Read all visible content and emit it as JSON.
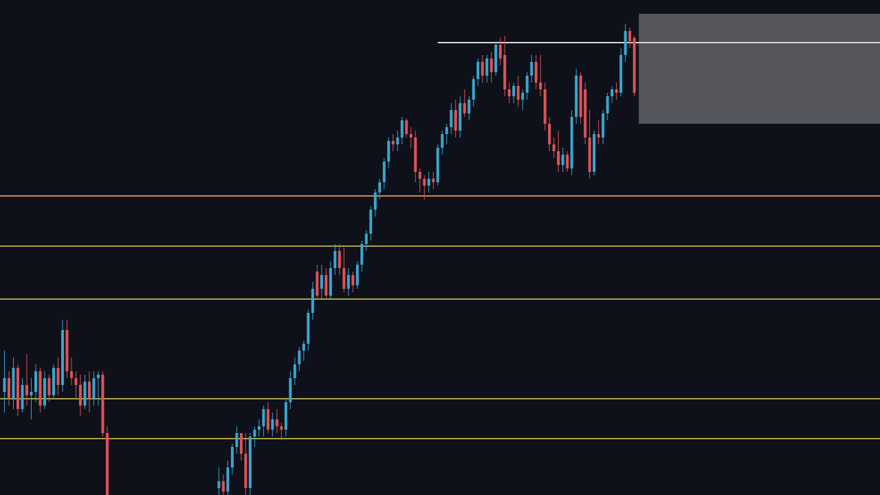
{
  "chart_data": {
    "type": "candlestick",
    "xlim": [
      -1,
      196
    ],
    "ylim": [
      0,
      720
    ],
    "up_color": "#3aa6cf",
    "down_color": "#e0525a",
    "x": [
      0,
      1,
      2,
      3,
      4,
      5,
      6,
      7,
      8,
      9,
      10,
      11,
      12,
      13,
      14,
      15,
      16,
      17,
      18,
      19,
      20,
      21,
      22,
      23,
      48,
      49,
      50,
      51,
      52,
      53,
      54,
      55,
      56,
      57,
      58,
      59,
      60,
      61,
      62,
      63,
      64,
      65,
      66,
      67,
      68,
      69,
      70,
      71,
      72,
      73,
      74,
      75,
      76,
      77,
      78,
      79,
      80,
      81,
      82,
      83,
      84,
      85,
      86,
      87,
      88,
      89,
      90,
      91,
      92,
      93,
      94,
      95,
      96,
      97,
      98,
      99,
      100,
      101,
      102,
      103,
      104,
      105,
      106,
      107,
      108,
      109,
      110,
      111,
      112,
      113,
      114,
      115,
      116,
      117,
      118,
      119,
      120,
      121,
      122,
      123,
      124,
      125,
      126,
      127,
      128,
      129,
      130,
      131,
      132,
      133,
      134,
      135,
      136,
      137,
      138,
      139,
      140,
      141
    ],
    "open": [
      150,
      170,
      140,
      185,
      125,
      160,
      145,
      150,
      180,
      130,
      170,
      145,
      185,
      160,
      240,
      180,
      170,
      160,
      130,
      165,
      140,
      170,
      175,
      90,
      10,
      20,
      5,
      40,
      70,
      90,
      60,
      10,
      85,
      95,
      100,
      125,
      95,
      110,
      100,
      95,
      135,
      170,
      190,
      210,
      220,
      265,
      325,
      300,
      320,
      290,
      330,
      355,
      330,
      300,
      320,
      305,
      335,
      365,
      380,
      415,
      440,
      455,
      485,
      515,
      510,
      520,
      545,
      525,
      520,
      470,
      460,
      450,
      460,
      455,
      505,
      525,
      535,
      560,
      530,
      570,
      555,
      575,
      605,
      630,
      610,
      635,
      615,
      655,
      640,
      590,
      580,
      595,
      575,
      585,
      610,
      630,
      600,
      590,
      540,
      510,
      500,
      480,
      495,
      475,
      550,
      610,
      590,
      520,
      470,
      525,
      520,
      555,
      580,
      590,
      585,
      640,
      675,
      665
    ],
    "high": [
      210,
      180,
      200,
      190,
      170,
      205,
      170,
      190,
      185,
      180,
      175,
      190,
      200,
      255,
      255,
      200,
      180,
      175,
      175,
      180,
      180,
      180,
      180,
      100,
      40,
      30,
      50,
      75,
      100,
      90,
      90,
      90,
      100,
      110,
      130,
      135,
      120,
      125,
      105,
      140,
      180,
      200,
      215,
      225,
      270,
      310,
      335,
      335,
      330,
      340,
      365,
      365,
      360,
      330,
      325,
      340,
      370,
      385,
      420,
      445,
      460,
      490,
      520,
      525,
      530,
      550,
      548,
      535,
      530,
      475,
      465,
      470,
      470,
      510,
      530,
      540,
      570,
      575,
      580,
      590,
      580,
      610,
      635,
      640,
      640,
      645,
      660,
      665,
      668,
      600,
      600,
      610,
      590,
      615,
      640,
      640,
      640,
      600,
      550,
      520,
      530,
      505,
      500,
      560,
      620,
      615,
      600,
      560,
      530,
      545,
      560,
      585,
      595,
      600,
      650,
      685,
      680,
      668
    ],
    "low": [
      120,
      130,
      125,
      115,
      120,
      130,
      110,
      135,
      120,
      125,
      135,
      140,
      145,
      150,
      170,
      160,
      140,
      115,
      125,
      120,
      130,
      130,
      85,
      -20,
      -20,
      0,
      -10,
      30,
      60,
      50,
      -10,
      0,
      70,
      85,
      85,
      90,
      85,
      90,
      80,
      85,
      125,
      160,
      180,
      195,
      210,
      255,
      285,
      285,
      285,
      285,
      320,
      320,
      295,
      290,
      295,
      300,
      325,
      355,
      370,
      405,
      430,
      445,
      475,
      500,
      500,
      510,
      520,
      505,
      455,
      440,
      430,
      440,
      445,
      450,
      495,
      510,
      525,
      520,
      520,
      550,
      545,
      565,
      595,
      600,
      600,
      600,
      610,
      625,
      580,
      570,
      570,
      565,
      560,
      575,
      600,
      590,
      580,
      530,
      500,
      490,
      470,
      470,
      470,
      465,
      540,
      540,
      510,
      460,
      465,
      510,
      510,
      545,
      570,
      575,
      580,
      630,
      650,
      580
    ],
    "close": [
      170,
      140,
      185,
      125,
      160,
      145,
      150,
      180,
      130,
      170,
      145,
      185,
      160,
      240,
      180,
      170,
      160,
      130,
      165,
      140,
      170,
      175,
      90,
      0,
      20,
      5,
      40,
      70,
      90,
      60,
      10,
      85,
      95,
      100,
      125,
      95,
      110,
      100,
      95,
      135,
      170,
      190,
      210,
      220,
      265,
      300,
      290,
      320,
      290,
      330,
      355,
      330,
      300,
      320,
      305,
      335,
      365,
      380,
      415,
      440,
      455,
      485,
      515,
      510,
      520,
      545,
      525,
      520,
      470,
      460,
      450,
      460,
      455,
      505,
      525,
      535,
      560,
      530,
      570,
      555,
      575,
      605,
      630,
      610,
      635,
      615,
      655,
      635,
      590,
      580,
      595,
      575,
      585,
      610,
      630,
      600,
      590,
      540,
      510,
      500,
      480,
      495,
      475,
      550,
      610,
      550,
      520,
      470,
      525,
      520,
      555,
      580,
      590,
      585,
      640,
      675,
      660,
      585
    ],
    "levels": [
      {
        "value": 435,
        "color": "#c98a4c"
      },
      {
        "value": 362,
        "color": "#a9a24c"
      },
      {
        "value": 285,
        "color": "#a9a24c"
      },
      {
        "value": 140,
        "color": "#a9a24c"
      },
      {
        "value": 82,
        "color": "#a9a24c"
      }
    ],
    "resistance": {
      "value": 658,
      "x_start": 97,
      "color": "#d8d8d8"
    },
    "zone": {
      "top": 700,
      "bottom": 540,
      "x_start": 142,
      "color": "#c8c8c8"
    }
  }
}
